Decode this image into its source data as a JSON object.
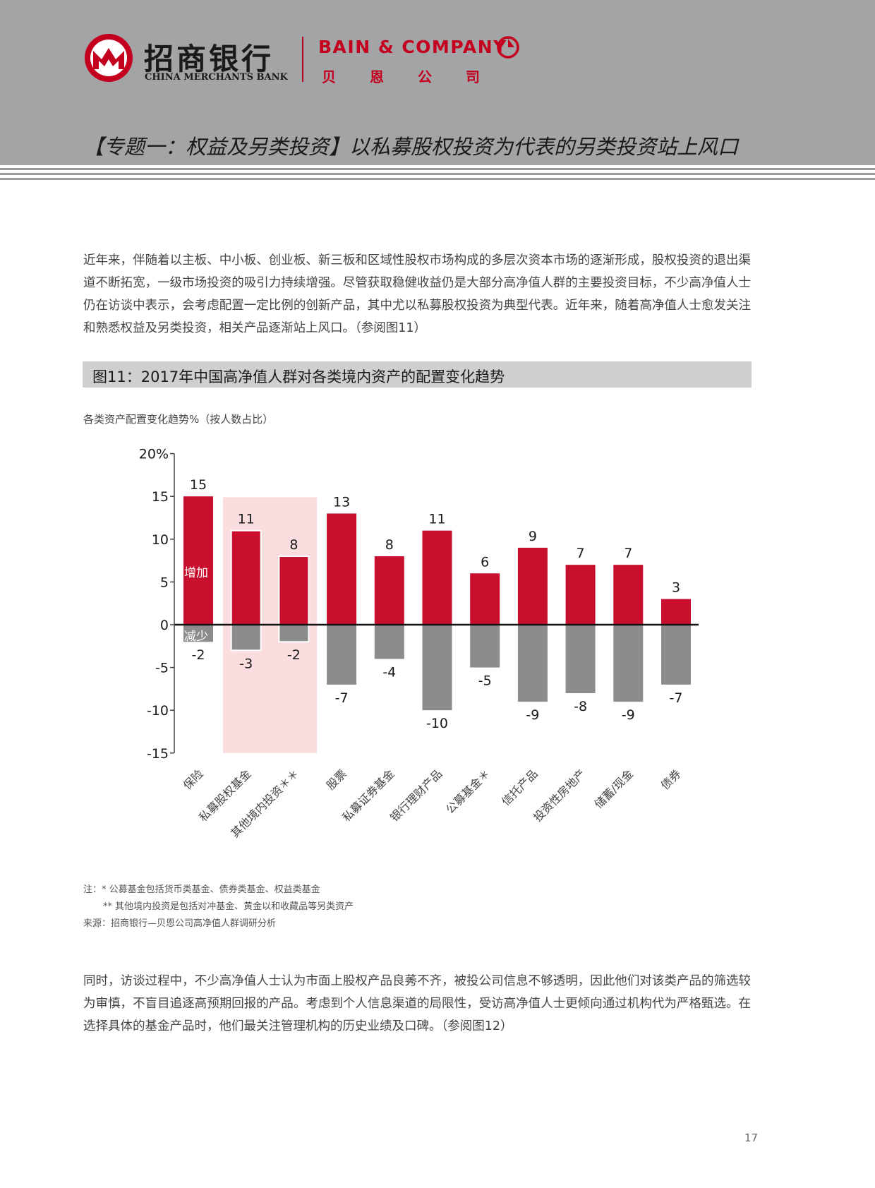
{
  "header": {
    "cmb_name_cn": "招商银行",
    "cmb_name_en": "CHINA MERCHANTS BANK",
    "bain_name_en": "BAIN & COMPANY",
    "bain_name_cn": "贝恩公司",
    "page_title": "【专题一：权益及另类投资】以私募股权投资为代表的另类投资站上风口",
    "brand_color": "#c4001f",
    "header_bg": "#a3a4a5"
  },
  "intro_paragraph": "近年来，伴随着以主板、中小板、创业板、新三板和区域性股权市场构成的多层次资本市场的逐渐形成，股权投资的退出渠道不断拓宽，一级市场投资的吸引力持续增强。尽管获取稳健收益仍是大部分高净值人群的主要投资目标，不少高净值人士仍在访谈中表示，会考虑配置一定比例的创新产品，其中尤以私募股权投资为典型代表。近年来，随着高净值人士愈发关注和熟悉权益及另类投资，相关产品逐渐站上风口。（参阅图11）",
  "figure": {
    "title": "图11：2017年中国高净值人群对各类境内资产的配置变化趋势",
    "subtitle": "各类资产配置变化趋势%（按人数占比）"
  },
  "chart_data": {
    "type": "bar",
    "categories": [
      "保险",
      "私募股权基金",
      "其他境内投资＊＊",
      "股票",
      "私募证券基金",
      "银行理财产品",
      "公募基金＊",
      "信托产品",
      "投资性房地产",
      "储蓄/现金",
      "债券"
    ],
    "series": [
      {
        "name": "增加",
        "values": [
          15,
          11,
          8,
          13,
          8,
          11,
          6,
          9,
          7,
          7,
          3
        ],
        "color": "#c8102e"
      },
      {
        "name": "减少",
        "values": [
          -2,
          -3,
          -2,
          -7,
          -4,
          -10,
          -5,
          -9,
          -8,
          -9,
          -7
        ],
        "color": "#8c8c8c"
      }
    ],
    "y_ticks": [
      "20%",
      "15",
      "10",
      "5",
      "0",
      "-5",
      "-10",
      "-15"
    ],
    "ylim": [
      -15,
      20
    ],
    "highlighted_categories": [
      "私募股权基金",
      "其他境内投资＊＊"
    ],
    "highlight_color": "#fbdde0",
    "legend_placement": "inside-first-bar"
  },
  "notes": [
    "注：* 公募基金包括货币类基金、债券类基金、权益类基金",
    "** 其他境内投资是包括对冲基金、黄金以和收藏品等另类资产",
    "来源：招商银行—贝恩公司高净值人群调研分析"
  ],
  "closing_paragraph": "同时，访谈过程中，不少高净值人士认为市面上股权产品良莠不齐，被投公司信息不够透明，因此他们对该类产品的筛选较为审慎，不盲目追逐高预期回报的产品。考虑到个人信息渠道的局限性，受访高净值人士更倾向通过机构代为严格甄选。在选择具体的基金产品时，他们最关注管理机构的历史业绩及口碑。（参阅图12）",
  "page_number": "17"
}
